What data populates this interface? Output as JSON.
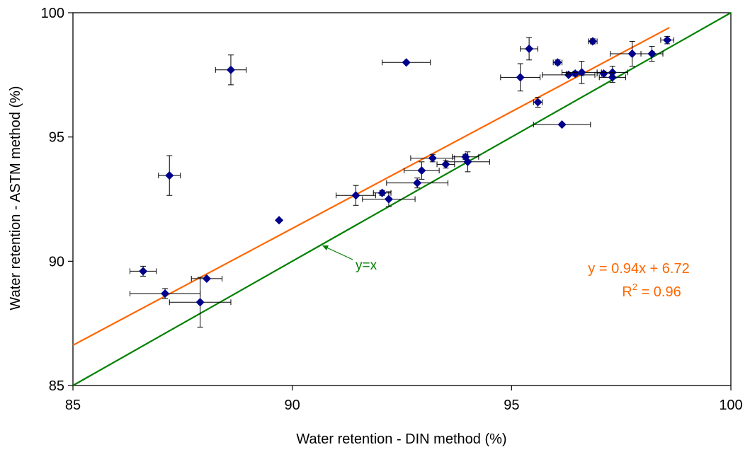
{
  "chart_data": {
    "type": "scatter",
    "xlabel": "Water retention - DIN method (%)",
    "ylabel": "Water retention - ASTM method (%)",
    "xlim": [
      85,
      100
    ],
    "ylim": [
      85,
      100
    ],
    "x_ticks": [
      "85",
      "90",
      "95",
      "100"
    ],
    "y_ticks": [
      "85",
      "90",
      "95",
      "100"
    ],
    "grid": false,
    "legend": "none",
    "marker_color": "#00008B",
    "marker": "diamond",
    "points": [
      {
        "x": 86.6,
        "y": 89.6,
        "xerr": 0.3,
        "yerr": 0.2
      },
      {
        "x": 87.1,
        "y": 88.7,
        "xerr": 0.8,
        "yerr": 0.2
      },
      {
        "x": 87.9,
        "y": 88.35,
        "xerr": 0.7,
        "yerr": 1.0
      },
      {
        "x": 88.05,
        "y": 89.3,
        "xerr": 0.35,
        "yerr": 0.0
      },
      {
        "x": 87.2,
        "y": 93.45,
        "xerr": 0.25,
        "yerr": 0.8
      },
      {
        "x": 88.6,
        "y": 97.7,
        "xerr": 0.35,
        "yerr": 0.6
      },
      {
        "x": 89.7,
        "y": 91.65,
        "xerr": 0.0,
        "yerr": 0.0
      },
      {
        "x": 91.45,
        "y": 92.65,
        "xerr": 0.45,
        "yerr": 0.4
      },
      {
        "x": 92.05,
        "y": 92.75,
        "xerr": 0.2,
        "yerr": 0.1
      },
      {
        "x": 92.2,
        "y": 92.5,
        "xerr": 0.6,
        "yerr": 0.3
      },
      {
        "x": 92.85,
        "y": 93.15,
        "xerr": 0.7,
        "yerr": 0.2
      },
      {
        "x": 92.95,
        "y": 93.65,
        "xerr": 0.4,
        "yerr": 0.35
      },
      {
        "x": 93.2,
        "y": 94.15,
        "xerr": 0.5,
        "yerr": 0.15
      },
      {
        "x": 93.5,
        "y": 93.9,
        "xerr": 0.2,
        "yerr": 0.15
      },
      {
        "x": 93.95,
        "y": 94.2,
        "xerr": 0.3,
        "yerr": 0.1
      },
      {
        "x": 94.0,
        "y": 94.0,
        "xerr": 0.5,
        "yerr": 0.4
      },
      {
        "x": 92.6,
        "y": 98.0,
        "xerr": 0.55,
        "yerr": 0.0
      },
      {
        "x": 95.2,
        "y": 97.4,
        "xerr": 0.45,
        "yerr": 0.55
      },
      {
        "x": 95.4,
        "y": 98.55,
        "xerr": 0.2,
        "yerr": 0.45
      },
      {
        "x": 95.6,
        "y": 96.4,
        "xerr": 0.1,
        "yerr": 0.2
      },
      {
        "x": 96.05,
        "y": 98.0,
        "xerr": 0.1,
        "yerr": 0.1
      },
      {
        "x": 96.15,
        "y": 95.5,
        "xerr": 0.65,
        "yerr": 0.0
      },
      {
        "x": 96.3,
        "y": 97.5,
        "xerr": 0.6,
        "yerr": 0.0
      },
      {
        "x": 96.45,
        "y": 97.55,
        "xerr": 0.2,
        "yerr": 0.1
      },
      {
        "x": 96.6,
        "y": 97.6,
        "xerr": 0.45,
        "yerr": 0.45
      },
      {
        "x": 96.85,
        "y": 98.85,
        "xerr": 0.1,
        "yerr": 0.1
      },
      {
        "x": 97.1,
        "y": 97.55,
        "xerr": 0.15,
        "yerr": 0.1
      },
      {
        "x": 97.3,
        "y": 97.6,
        "xerr": 0.35,
        "yerr": 0.25
      },
      {
        "x": 97.3,
        "y": 97.4,
        "xerr": 0.3,
        "yerr": 0.2
      },
      {
        "x": 97.75,
        "y": 98.35,
        "xerr": 0.5,
        "yerr": 0.5
      },
      {
        "x": 98.2,
        "y": 98.35,
        "xerr": 0.25,
        "yerr": 0.3
      },
      {
        "x": 98.55,
        "y": 98.9,
        "xerr": 0.15,
        "yerr": 0.15
      }
    ],
    "lines": [
      {
        "label": "y=x",
        "slope": 1.0,
        "intercept": 0.0,
        "color": "#008000"
      },
      {
        "label": "y = 0.94x + 6.72",
        "slope": 0.94,
        "intercept": 6.72,
        "color": "#FF6600",
        "x_range": [
          85,
          98.6
        ]
      }
    ],
    "annotations": {
      "identity_label": "y=x",
      "fit_equation": "y = 0.94x + 6.72",
      "r_squared_prefix": "R",
      "r_squared_exponent": "2",
      "r_squared_suffix": " = 0.96"
    }
  }
}
